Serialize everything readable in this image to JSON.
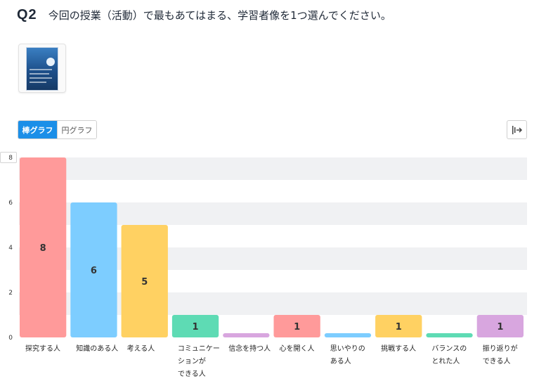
{
  "question": {
    "number": "Q2",
    "text": "今回の授業（活動）で最もあてはまる、学習者像を1つ選んでください。"
  },
  "tabs": [
    {
      "label": "棒グラフ",
      "active": true
    },
    {
      "label": "円グラフ",
      "active": false
    }
  ],
  "export_icon": "export-icon",
  "thumbnail_icon": "document-thumbnail",
  "chart_data": {
    "type": "bar",
    "categories": [
      "探究する人",
      "知識のある人",
      "考える人",
      "コミュニケーションができる人",
      "信念を持つ人",
      "心を開く人",
      "思いやりのある人",
      "挑戦する人",
      "バランスのとれた人",
      "振り返りができる人"
    ],
    "category_lines": [
      [
        "探究する人"
      ],
      [
        "知識のある人"
      ],
      [
        "考える人"
      ],
      [
        "コミュニケー",
        "ションが",
        "できる人"
      ],
      [
        "信念を持つ人"
      ],
      [
        "心を開く人"
      ],
      [
        "思いやりの",
        "ある人"
      ],
      [
        "挑戦する人"
      ],
      [
        "バランスの",
        "とれた人"
      ],
      [
        "振り返りが",
        "できる人"
      ]
    ],
    "values": [
      8,
      6,
      5,
      1,
      0,
      1,
      0,
      1,
      0,
      1
    ],
    "data_labels": [
      "8",
      "6",
      "5",
      "1",
      "",
      "1",
      "",
      "1",
      "",
      "1"
    ],
    "colors": [
      "#ff9a9a",
      "#7dcdff",
      "#ffd162",
      "#5edbb4",
      "#d8a6df",
      "#ff9a9a",
      "#7dcdff",
      "#ffd162",
      "#5edbb4",
      "#d8a6df"
    ],
    "y_ticks": [
      "0",
      "2",
      "4",
      "6",
      "8"
    ],
    "ylim": [
      0,
      8
    ],
    "grid": true,
    "title": "",
    "xlabel": "",
    "ylabel": ""
  }
}
